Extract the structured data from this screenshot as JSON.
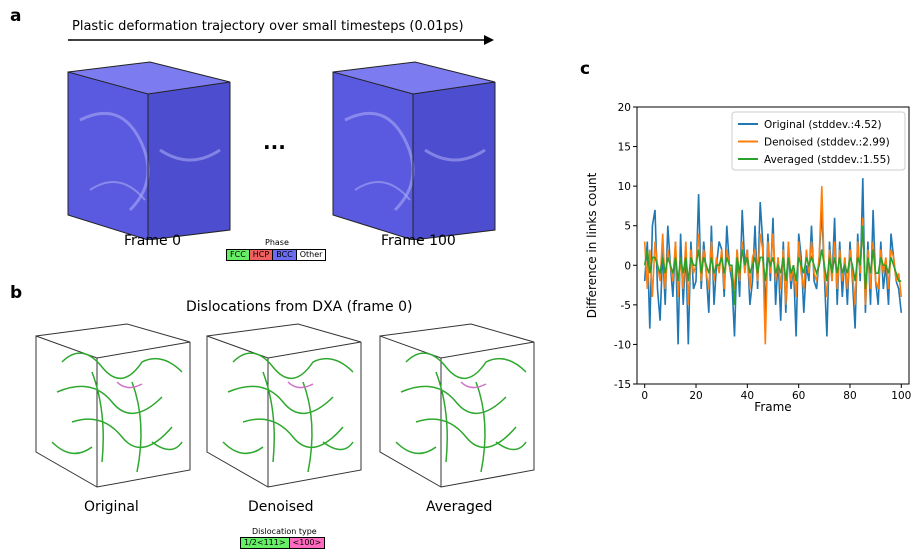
{
  "panel_a": {
    "letter": "a",
    "title": "Plastic deformation trajectory over small timesteps (0.01ps)",
    "frame_left": "Frame 0",
    "frame_right": "Frame 100",
    "ellipsis": "...",
    "legend_title": "Phase",
    "legend_items": [
      {
        "label": "FCC",
        "color": "#66ee66"
      },
      {
        "label": "HCP",
        "color": "#f06060"
      },
      {
        "label": "BCC",
        "color": "#6c6cf0"
      },
      {
        "label": "Other",
        "color": "#ffffff"
      }
    ]
  },
  "panel_b": {
    "letter": "b",
    "title": "Dislocations from DXA (frame 0)",
    "labels": [
      "Original",
      "Denoised",
      "Averaged"
    ],
    "legend_title": "Dislocation type",
    "legend_items": [
      {
        "label": "1/2<111>",
        "color": "#66ee66"
      },
      {
        "label": "<100>",
        "color": "#ff69c0"
      }
    ]
  },
  "panel_c": {
    "letter": "c"
  },
  "chart_data": {
    "type": "line",
    "xlabel": "Frame",
    "ylabel": "Difference in links count",
    "xlim": [
      -3,
      103
    ],
    "ylim": [
      -15,
      20
    ],
    "xticks": [
      0,
      20,
      40,
      60,
      80,
      100
    ],
    "yticks": [
      -15,
      -10,
      -5,
      0,
      5,
      10,
      15,
      20
    ],
    "legend_position": "top-right",
    "series": [
      {
        "name": "Original (stddev.:4.52)",
        "color": "#1f77b4",
        "values": [
          -2,
          3,
          -8,
          5,
          7,
          -3,
          -7,
          2,
          -5,
          5,
          0,
          -4,
          3,
          -10,
          4,
          -5,
          2,
          -10,
          3,
          -3,
          -2,
          9,
          -3,
          3,
          -1,
          -6,
          5,
          -5,
          0,
          3,
          2,
          -4,
          5,
          0,
          -2,
          -9,
          2,
          -4,
          7,
          0,
          2,
          -5,
          -2,
          5,
          -3,
          8,
          3,
          -6,
          4,
          -2,
          6,
          -5,
          1,
          -7,
          3,
          -6,
          2,
          -3,
          0,
          -9,
          4,
          1,
          -6,
          0,
          -2,
          5,
          -2,
          -3,
          1,
          7,
          -1,
          -9,
          3,
          -2,
          6,
          -5,
          3,
          -4,
          1,
          -5,
          3,
          -2,
          -8,
          4,
          -2,
          11,
          -6,
          3,
          -5,
          7,
          -2,
          -5,
          3,
          -3,
          0,
          -5,
          4,
          1,
          -2,
          -3,
          -6
        ]
      },
      {
        "name": "Denoised (stddev.:2.99)",
        "color": "#ff7f0e",
        "values": [
          3,
          -3,
          2,
          -4,
          3,
          0,
          -2,
          4,
          -3,
          2,
          0,
          -2,
          3,
          -4,
          1,
          -3,
          3,
          -5,
          2,
          -1,
          0,
          4,
          -2,
          2,
          -1,
          -3,
          3,
          -2,
          1,
          -1,
          2,
          -3,
          2,
          0,
          -1,
          -3,
          2,
          -2,
          3,
          -1,
          2,
          -3,
          1,
          2,
          -2,
          4,
          2,
          -10,
          3,
          -1,
          4,
          -2,
          1,
          -3,
          2,
          -5,
          3,
          -2,
          0,
          -4,
          3,
          -1,
          -3,
          2,
          -1,
          3,
          -1,
          -2,
          1,
          10,
          -1,
          -4,
          2,
          -2,
          3,
          -3,
          2,
          -2,
          1,
          -3,
          2,
          -1,
          -5,
          3,
          -1,
          6,
          -5,
          2,
          -3,
          3,
          -2,
          -3,
          2,
          -1,
          1,
          -3,
          2,
          1,
          -2,
          -1,
          -4
        ]
      },
      {
        "name": "Averaged (stddev.:1.55)",
        "color": "#2ca02c",
        "values": [
          0,
          2,
          -1,
          1,
          1,
          0,
          -1,
          1,
          -1,
          1,
          0,
          -1,
          1,
          -2,
          1,
          -1,
          1,
          -2,
          1,
          0,
          0,
          2,
          -1,
          1,
          0,
          -1,
          1,
          -1,
          0,
          0,
          1,
          -1,
          1,
          0,
          0,
          -5,
          1,
          -1,
          2,
          0,
          1,
          -1,
          0,
          1,
          -1,
          1,
          1,
          -2,
          1,
          0,
          1,
          -1,
          0,
          -1,
          1,
          -2,
          1,
          -1,
          0,
          -2,
          1,
          0,
          -1,
          1,
          0,
          1,
          0,
          -1,
          0,
          2,
          0,
          -2,
          1,
          -1,
          1,
          -1,
          1,
          -1,
          0,
          -1,
          1,
          0,
          -2,
          1,
          0,
          5,
          -3,
          1,
          -1,
          2,
          -1,
          -1,
          1,
          0,
          0,
          -1,
          1,
          0,
          -1,
          -2,
          -2
        ]
      }
    ]
  }
}
